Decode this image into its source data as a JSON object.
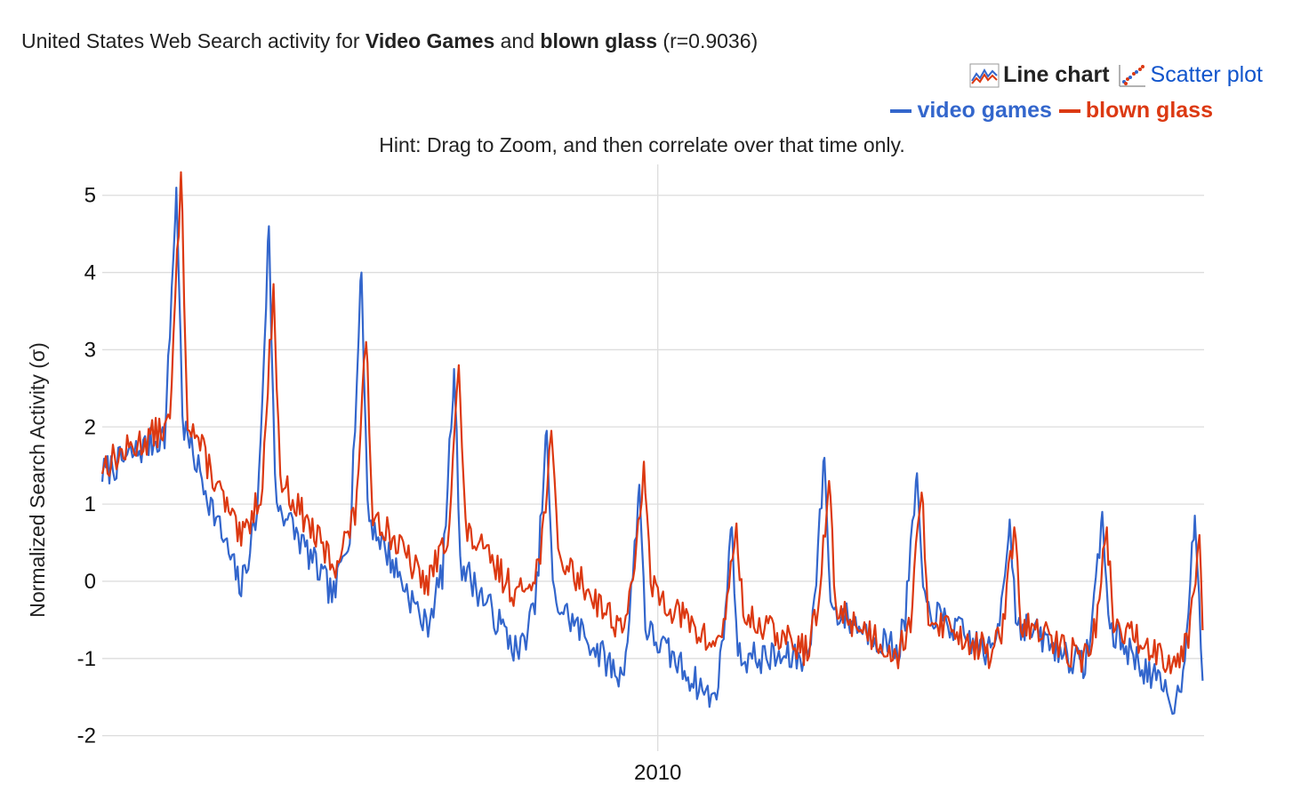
{
  "header": {
    "title_prefix": "United States Web Search activity for ",
    "term_a": "Video Games",
    "title_and": " and ",
    "term_b": "blown glass",
    "title_suffix": " (r=0.9036)"
  },
  "view_switch": {
    "line_chart_label": "Line chart",
    "scatter_plot_label": "Scatter plot",
    "active": "line-chart",
    "icons": [
      "line-chart-icon",
      "scatter-plot-icon"
    ]
  },
  "hint": "Hint: Drag to Zoom, and then correlate over that time only.",
  "colors": {
    "video_games": "#3366cc",
    "blown_glass": "#dc3912",
    "grid": "#dddddd",
    "link": "#1155cc"
  },
  "chart_data": {
    "type": "line",
    "title": "United States Web Search activity for Video Games and blown glass (r=0.9036)",
    "xlabel": "",
    "ylabel": "Normalized Search Activity (σ)",
    "xlim": [
      2004.0,
      2015.9
    ],
    "ylim": [
      -2.2,
      5.4
    ],
    "y_ticks": [
      5,
      4,
      3,
      2,
      1,
      0,
      -1,
      -2
    ],
    "x_ticks": [
      {
        "value": 2010,
        "label": "2010"
      }
    ],
    "grid": true,
    "legend": "top-right",
    "series": [
      {
        "name": "video games",
        "color": "#3366cc",
        "peaks": [
          {
            "x": 2004.8,
            "y": 5.1
          },
          {
            "x": 2005.8,
            "y": 4.6
          },
          {
            "x": 2006.8,
            "y": 4.0
          },
          {
            "x": 2007.8,
            "y": 2.75
          },
          {
            "x": 2008.8,
            "y": 1.95
          },
          {
            "x": 2009.8,
            "y": 1.25
          },
          {
            "x": 2010.8,
            "y": 0.7
          },
          {
            "x": 2011.8,
            "y": 1.6
          },
          {
            "x": 2012.8,
            "y": 1.4
          },
          {
            "x": 2013.8,
            "y": 0.8
          },
          {
            "x": 2014.8,
            "y": 0.9
          },
          {
            "x": 2015.8,
            "y": 0.85
          }
        ],
        "troughs": [
          {
            "x": 2005.5,
            "y": -0.1
          },
          {
            "x": 2006.5,
            "y": -0.2
          },
          {
            "x": 2007.5,
            "y": -0.6
          },
          {
            "x": 2008.5,
            "y": -0.95
          },
          {
            "x": 2009.6,
            "y": -1.25
          },
          {
            "x": 2010.6,
            "y": -1.55
          },
          {
            "x": 2011.6,
            "y": -1.0
          },
          {
            "x": 2012.6,
            "y": -0.9
          },
          {
            "x": 2013.6,
            "y": -0.95
          },
          {
            "x": 2014.6,
            "y": -1.1
          },
          {
            "x": 2015.6,
            "y": -1.6
          }
        ]
      },
      {
        "name": "blown glass",
        "color": "#dc3912",
        "peaks": [
          {
            "x": 2004.85,
            "y": 5.3
          },
          {
            "x": 2005.85,
            "y": 3.85
          },
          {
            "x": 2006.85,
            "y": 3.1
          },
          {
            "x": 2007.85,
            "y": 2.8
          },
          {
            "x": 2008.85,
            "y": 1.95
          },
          {
            "x": 2009.85,
            "y": 1.55
          },
          {
            "x": 2010.85,
            "y": 0.75
          },
          {
            "x": 2011.85,
            "y": 1.3
          },
          {
            "x": 2012.85,
            "y": 1.15
          },
          {
            "x": 2013.85,
            "y": 0.7
          },
          {
            "x": 2014.85,
            "y": 0.7
          },
          {
            "x": 2015.85,
            "y": 0.6
          }
        ],
        "troughs": [
          {
            "x": 2005.5,
            "y": 0.5
          },
          {
            "x": 2006.5,
            "y": 0.2
          },
          {
            "x": 2007.5,
            "y": -0.05
          },
          {
            "x": 2008.5,
            "y": -0.2
          },
          {
            "x": 2009.6,
            "y": -0.6
          },
          {
            "x": 2010.6,
            "y": -0.85
          },
          {
            "x": 2011.6,
            "y": -0.9
          },
          {
            "x": 2012.6,
            "y": -0.95
          },
          {
            "x": 2013.6,
            "y": -0.95
          },
          {
            "x": 2014.6,
            "y": -1.0
          },
          {
            "x": 2015.6,
            "y": -1.05
          }
        ]
      }
    ]
  }
}
